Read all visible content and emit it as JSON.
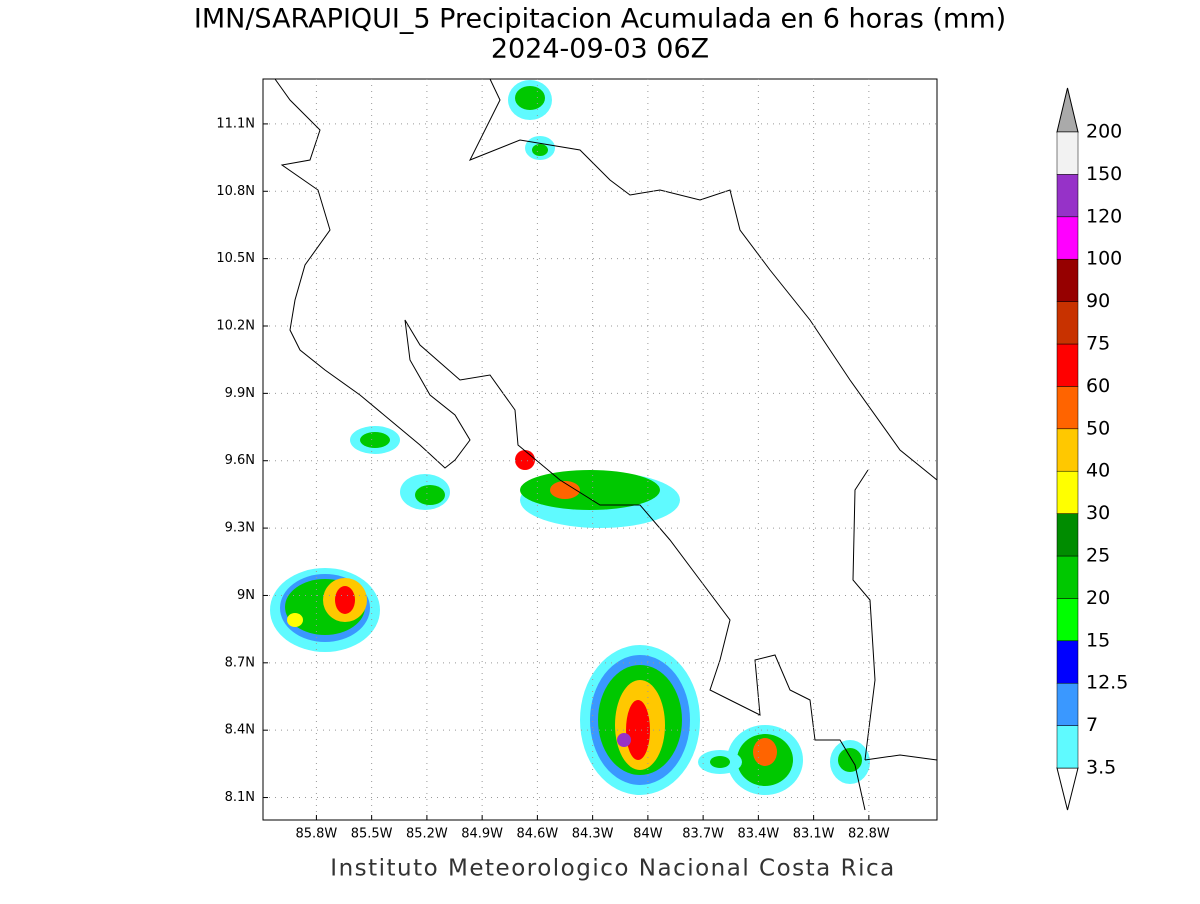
{
  "chart_data": {
    "type": "map",
    "title": "IMN/SARAPIQUI_5 Precipitacion Acumulada en 6 horas (mm)",
    "subtitle": "2024-09-03 06Z",
    "footer": "Instituto Meteorologico Nacional Costa Rica",
    "xlim": [
      -86.09,
      -82.43
    ],
    "ylim": [
      8.0,
      11.3
    ],
    "xticks": [
      {
        "value": -85.8,
        "label": "85.8W"
      },
      {
        "value": -85.5,
        "label": "85.5W"
      },
      {
        "value": -85.2,
        "label": "85.2W"
      },
      {
        "value": -84.9,
        "label": "84.9W"
      },
      {
        "value": -84.6,
        "label": "84.6W"
      },
      {
        "value": -84.3,
        "label": "84.3W"
      },
      {
        "value": -84.0,
        "label": "84W"
      },
      {
        "value": -83.7,
        "label": "83.7W"
      },
      {
        "value": -83.4,
        "label": "83.4W"
      },
      {
        "value": -83.1,
        "label": "83.1W"
      },
      {
        "value": -82.8,
        "label": "82.8W"
      }
    ],
    "yticks": [
      {
        "value": 8.1,
        "label": "8.1N"
      },
      {
        "value": 8.4,
        "label": "8.4N"
      },
      {
        "value": 8.7,
        "label": "8.7N"
      },
      {
        "value": 9.0,
        "label": "9N"
      },
      {
        "value": 9.3,
        "label": "9.3N"
      },
      {
        "value": 9.6,
        "label": "9.6N"
      },
      {
        "value": 9.9,
        "label": "9.9N"
      },
      {
        "value": 10.2,
        "label": "10.2N"
      },
      {
        "value": 10.5,
        "label": "10.5N"
      },
      {
        "value": 10.8,
        "label": "10.8N"
      },
      {
        "value": 11.1,
        "label": "11.1N"
      }
    ],
    "grid": true,
    "colorbar": {
      "levels": [
        3.5,
        7,
        12.5,
        15,
        20,
        25,
        30,
        40,
        50,
        60,
        75,
        90,
        100,
        120,
        150,
        200
      ],
      "colors": [
        "#5ffaff",
        "#3a98ff",
        "#0000ff",
        "#00ff00",
        "#00c800",
        "#008c00",
        "#ffff00",
        "#ffc800",
        "#ff6400",
        "#ff0000",
        "#c83200",
        "#960000",
        "#ff00ff",
        "#9632c8",
        "#f2f2f2"
      ],
      "under_color": "#ffffff",
      "over_color": "#aaaaaa"
    }
  }
}
